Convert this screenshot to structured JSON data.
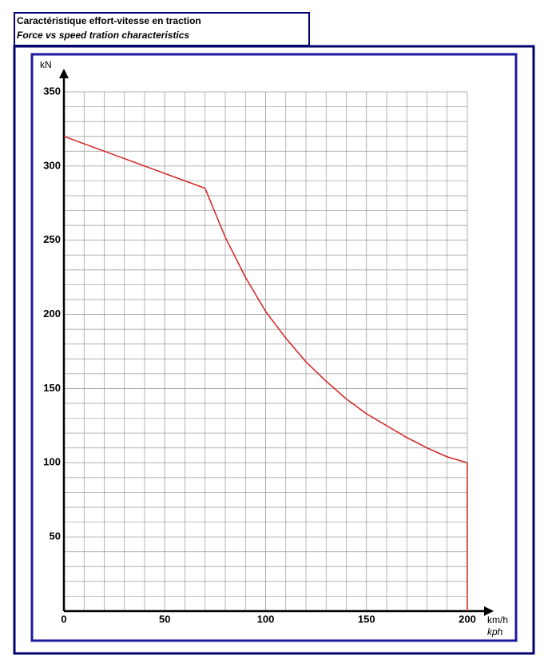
{
  "chart_data": {
    "type": "line",
    "title": "Caractéristique effort-vitesse en traction",
    "subtitle": "Force vs speed tration characteristics",
    "y_label": "kN",
    "x_label": "km/h",
    "x_label_en": "kph",
    "x": [
      0,
      70,
      80,
      90,
      100,
      110,
      120,
      130,
      140,
      150,
      160,
      170,
      180,
      190,
      200,
      200
    ],
    "series": [
      {
        "name": "Force",
        "color": "#d42020",
        "values": [
          320,
          285,
          252,
          225,
          202,
          184,
          168,
          155,
          143,
          133,
          125,
          117,
          110,
          104,
          100,
          0
        ]
      }
    ],
    "xlim": [
      0,
      200
    ],
    "ylim": [
      0,
      350
    ],
    "xticks": [
      0,
      50,
      100,
      150,
      200
    ],
    "yticks": [
      50,
      100,
      150,
      200,
      250,
      300,
      350
    ],
    "xminor_ticks": [
      10,
      20,
      30,
      40,
      60,
      70,
      80,
      90,
      110,
      120,
      130,
      140,
      160,
      170,
      180,
      190
    ],
    "yminor_ticks": [
      10,
      20,
      30,
      40,
      60,
      70,
      80,
      90,
      110,
      120,
      130,
      140,
      160,
      170,
      180,
      190,
      210,
      220,
      230,
      240,
      260,
      270,
      280,
      290,
      310,
      320,
      330,
      340
    ],
    "grid": true
  }
}
